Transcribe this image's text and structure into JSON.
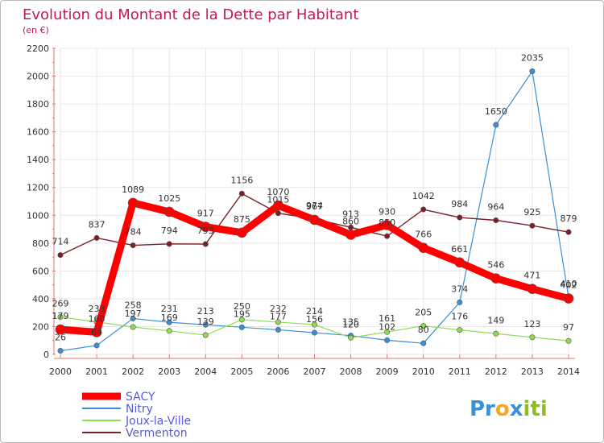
{
  "chart_data": {
    "type": "line",
    "title": "Evolution du Montant de la Dette par Habitant",
    "subtitle": "(en €)",
    "xlabel": "",
    "ylabel": "",
    "categories": [
      "2000",
      "2001",
      "2002",
      "2003",
      "2004",
      "2005",
      "2006",
      "2007",
      "2008",
      "2009",
      "2010",
      "2011",
      "2012",
      "2013",
      "2014"
    ],
    "ylim": [
      0,
      2200
    ],
    "yticks": [
      0,
      200,
      400,
      600,
      800,
      1000,
      1200,
      1400,
      1600,
      1800,
      2000,
      2200
    ],
    "legend_position": "bottom-left",
    "series": [
      {
        "name": "SACY",
        "color": "#ff0000",
        "values": [
          179,
          160,
          1089,
          1025,
          917,
          875,
          1070,
          967,
          860,
          930,
          766,
          661,
          546,
          471,
          402
        ]
      },
      {
        "name": "Nitry",
        "color": "#3a8fd6",
        "values": [
          26,
          64,
          258,
          231,
          213,
          195,
          177,
          156,
          135,
          102,
          80,
          374,
          1650,
          2035,
          410
        ]
      },
      {
        "name": "Joux-la-Ville",
        "color": "#8fdc52",
        "values": [
          269,
          233,
          197,
          169,
          139,
          250,
          232,
          214,
          120,
          161,
          205,
          176,
          149,
          123,
          97
        ]
      },
      {
        "name": "Vermenton",
        "color": "#7a1f28",
        "values": [
          714,
          837,
          784,
          794,
          793,
          1156,
          1015,
          974,
          913,
          850,
          1042,
          984,
          964,
          925,
          879
        ]
      }
    ]
  },
  "branding": {
    "logo_parts": [
      "Pr",
      "o",
      "x",
      "iti"
    ],
    "logo_colors": [
      "#3a8fd6",
      "#f5a623",
      "#3a8fd6",
      "#8fbc1f"
    ]
  }
}
